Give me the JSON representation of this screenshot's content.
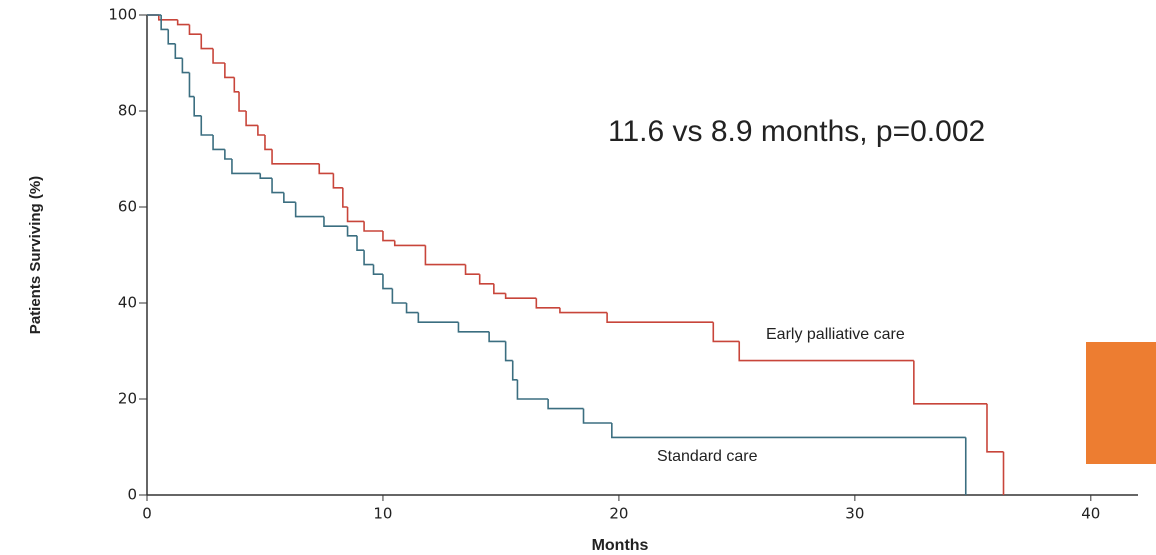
{
  "chart_data": {
    "type": "step",
    "annotation": "11.6 vs 8.9 months, p=0.002",
    "x_label": "Months",
    "y_label": "Patients Surviving (%)",
    "xlim": [
      0,
      42
    ],
    "ylim": [
      0,
      100
    ],
    "xticks": [
      0,
      10,
      20,
      30,
      40
    ],
    "yticks": [
      0,
      20,
      40,
      60,
      80,
      100
    ],
    "series": [
      {
        "name": "Early palliative care",
        "color": "#c8453a",
        "x": [
          0,
          0.5,
          1.3,
          1.8,
          2.3,
          2.8,
          3.3,
          3.7,
          3.9,
          4.2,
          4.7,
          5.0,
          5.3,
          7.3,
          7.9,
          8.3,
          8.5,
          9.2,
          10.0,
          10.5,
          11.8,
          13.5,
          14.1,
          14.7,
          15.2,
          16.5,
          17.5,
          19.5,
          24.0,
          25.1,
          32.5,
          35.6,
          36.3
        ],
        "values": [
          100,
          99,
          98,
          96,
          93,
          90,
          87,
          84,
          80,
          77,
          75,
          72,
          69,
          67,
          64,
          60,
          57,
          55,
          53,
          52,
          48,
          46,
          44,
          42,
          41,
          39,
          38,
          36,
          32,
          28,
          19,
          9,
          0
        ]
      },
      {
        "name": "Standard care",
        "color": "#3b6e80",
        "x": [
          0,
          0.6,
          0.9,
          1.2,
          1.5,
          1.8,
          2.0,
          2.3,
          2.8,
          3.3,
          3.6,
          4.8,
          5.3,
          5.8,
          6.3,
          7.5,
          8.5,
          8.9,
          9.2,
          9.6,
          10.0,
          10.4,
          11.0,
          11.5,
          13.2,
          14.5,
          15.2,
          15.5,
          15.7,
          17.0,
          18.5,
          19.7,
          34.7
        ],
        "values": [
          100,
          97,
          94,
          91,
          88,
          83,
          79,
          75,
          72,
          70,
          67,
          66,
          63,
          61,
          58,
          56,
          54,
          51,
          48,
          46,
          43,
          40,
          38,
          36,
          34,
          32,
          28,
          24,
          20,
          18,
          15,
          12,
          0
        ]
      }
    ]
  }
}
